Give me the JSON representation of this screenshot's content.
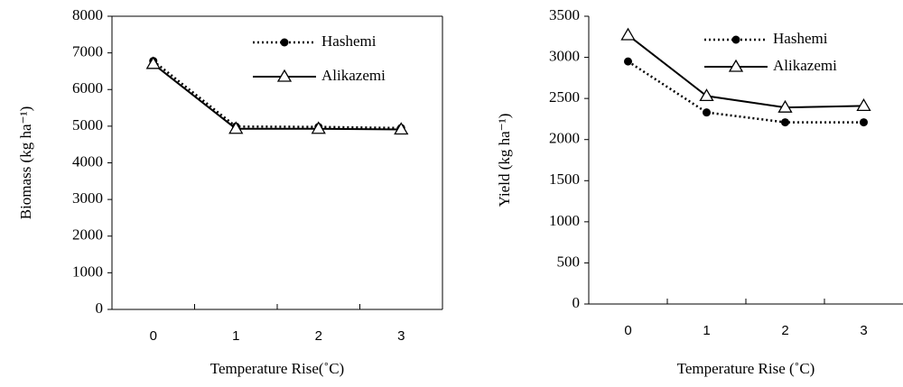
{
  "chart_data": [
    {
      "type": "line",
      "x_label": "Temperature Rise(˚C)",
      "y_label": "Biomass (kg ha⁻¹)",
      "categories": [
        "0",
        "1",
        "2",
        "3"
      ],
      "series": [
        {
          "name": "Hashemi",
          "color": "#000000",
          "line_style": "dotted",
          "marker": "circle",
          "values": [
            6780,
            4990,
            4980,
            4950
          ]
        },
        {
          "name": "Alikazemi",
          "color": "#000000",
          "line_style": "solid",
          "marker": "triangle",
          "values": [
            6700,
            4930,
            4930,
            4910
          ]
        }
      ],
      "ylim": [
        0,
        8000
      ],
      "yticks": [
        0,
        1000,
        2000,
        3000,
        4000,
        5000,
        6000,
        7000,
        8000
      ],
      "legend": "upper right"
    },
    {
      "type": "line",
      "x_label": "Temperature Rise (˚C)",
      "y_label": "Yield (kg ha⁻¹)",
      "categories": [
        "0",
        "1",
        "2",
        "3"
      ],
      "series": [
        {
          "name": "Hashemi",
          "color": "#000000",
          "line_style": "dotted",
          "marker": "circle",
          "values": [
            2950,
            2330,
            2210,
            2210
          ]
        },
        {
          "name": "Alikazemi",
          "color": "#000000",
          "line_style": "solid",
          "marker": "triangle",
          "values": [
            3270,
            2530,
            2390,
            2410
          ]
        }
      ],
      "ylim": [
        0,
        3500
      ],
      "yticks": [
        0,
        500,
        1000,
        1500,
        2000,
        2500,
        3000,
        3500
      ],
      "legend": "upper right"
    }
  ]
}
